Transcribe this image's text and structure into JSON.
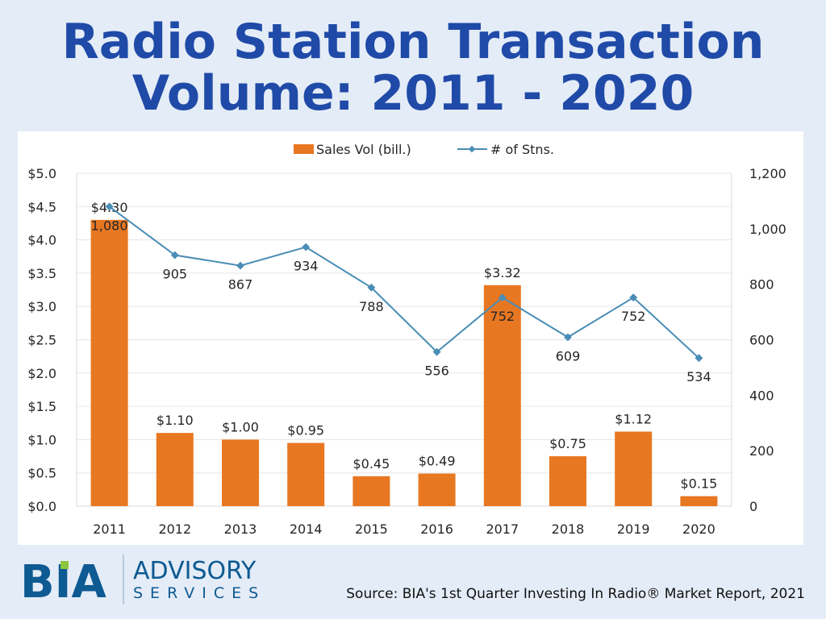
{
  "title_line1": "Radio Station Transaction",
  "title_line2": "Volume: 2011 - 2020",
  "source": "Source: BIA's 1st Quarter Investing In Radio® Market Report, 2021",
  "logo": {
    "brand": "BIA",
    "line1": "ADVISORY",
    "line2": "SERVICES"
  },
  "colors": {
    "bar": "#e87722",
    "line": "#4a8db5",
    "title": "#1f4aa8",
    "logo": "#0e5a92",
    "logo_accent": "#8cc63f"
  },
  "chart_data": {
    "type": "bar+line",
    "categories": [
      "2011",
      "2012",
      "2013",
      "2014",
      "2015",
      "2016",
      "2017",
      "2018",
      "2019",
      "2020"
    ],
    "series": [
      {
        "name": "Sales Vol (bill.)",
        "type": "bar",
        "axis": "left",
        "values": [
          4.3,
          1.1,
          1.0,
          0.95,
          0.45,
          0.49,
          3.32,
          0.75,
          1.12,
          0.15
        ],
        "labels": [
          "$4.30",
          "$1.10",
          "$1.00",
          "$0.95",
          "$0.45",
          "$0.49",
          "$3.32",
          "$0.75",
          "$1.12",
          "$0.15"
        ]
      },
      {
        "name": "# of Stns.",
        "type": "line",
        "axis": "right",
        "values": [
          1080,
          905,
          867,
          934,
          788,
          556,
          752,
          609,
          752,
          534
        ],
        "labels": [
          "1,080",
          "905",
          "867",
          "934",
          "788",
          "556",
          "752",
          "609",
          "752",
          "534"
        ]
      }
    ],
    "left_axis": {
      "range": [
        0,
        5
      ],
      "ticks": [
        "$0.0",
        "$0.5",
        "$1.0",
        "$1.5",
        "$2.0",
        "$2.5",
        "$3.0",
        "$3.5",
        "$4.0",
        "$4.5",
        "$5.0"
      ]
    },
    "right_axis": {
      "range": [
        0,
        1200
      ],
      "ticks": [
        "0",
        "200",
        "400",
        "600",
        "800",
        "1,000",
        "1,200"
      ]
    },
    "legend": "top",
    "grid": true
  }
}
